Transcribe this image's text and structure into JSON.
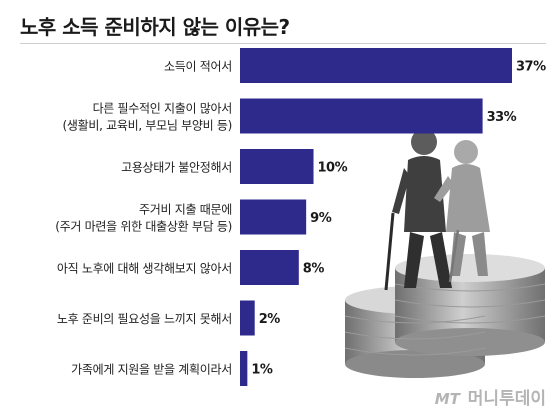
{
  "chart_data": {
    "type": "bar",
    "orientation": "horizontal",
    "title": "노후 소득 준비하지 않는 이유는?",
    "categories": [
      [
        "소득이 적어서"
      ],
      [
        "다른 필수적인 지출이 많아서",
        "(생활비, 교육비, 부모님 부양비 등)"
      ],
      [
        "고용상태가 불안정해서"
      ],
      [
        "주거비 지출 때문에",
        "(주거 마련을 위한 대출상환 부담 등)"
      ],
      [
        "아직 노후에 대해 생각해보지 않아서"
      ],
      [
        "노후 준비의 필요성을 느끼지 못해서"
      ],
      [
        "가족에게 지원을 받을 계획이라서"
      ]
    ],
    "values": [
      37,
      33,
      10,
      9,
      8,
      2,
      1
    ],
    "value_labels": [
      "37%",
      "33%",
      "10%",
      "9%",
      "8%",
      "2%",
      "1%"
    ],
    "unit": "%",
    "xlim": [
      0,
      37
    ],
    "grid": false,
    "legend": "none",
    "colors": {
      "bar": "#2e2a8c",
      "label": "#222222",
      "value": "#1a1a1a"
    }
  },
  "watermark": {
    "mark": "MT",
    "text": "머니투데이"
  },
  "illustration": {
    "icon": "elderly-couple-on-coin-stacks-icon"
  }
}
